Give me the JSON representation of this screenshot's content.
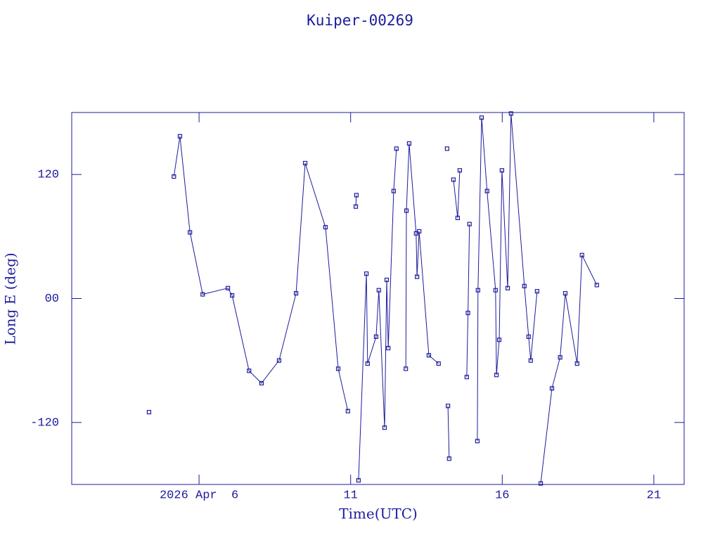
{
  "chart_data": {
    "type": "line",
    "title": "Kuiper-00269",
    "x_label": "Time(UTC)",
    "y_label": "Long E (deg)",
    "color": "#1c1c9c",
    "xlim": [
      1.8,
      22.0
    ],
    "ylim": [
      -180,
      180
    ],
    "xticks": [
      {
        "value": 6,
        "label": "2026 Apr  6"
      },
      11,
      16,
      21
    ],
    "yticks": [
      {
        "value": 120,
        "label": "120"
      },
      {
        "value": 0,
        "label": "00"
      },
      {
        "value": -120,
        "label": "-120"
      }
    ],
    "x": [
      4.35,
      null,
      5.17,
      5.37,
      5.7,
      6.12,
      6.95,
      7.09,
      7.65,
      8.06,
      8.64,
      9.2,
      9.5,
      10.17,
      10.59,
      10.91,
      null,
      11.17,
      11.19,
      null,
      11.26,
      11.52,
      11.56,
      11.84,
      11.93,
      12.12,
      12.19,
      12.24,
      12.42,
      12.51,
      null,
      12.82,
      12.84,
      12.93,
      13.16,
      13.19,
      13.26,
      13.58,
      13.9,
      null,
      14.18,
      null,
      14.21,
      14.25,
      null,
      14.39,
      14.53,
      14.6,
      null,
      14.83,
      14.87,
      14.92,
      null,
      15.18,
      15.2,
      15.32,
      15.5,
      15.78,
      15.81,
      15.9,
      15.99,
      16.18,
      16.29,
      16.73,
      16.87,
      16.94,
      17.15,
      null,
      17.27,
      17.64,
      17.91,
      18.08,
      18.47,
      18.63,
      19.12
    ],
    "values": [
      -110,
      null,
      118,
      157,
      64,
      4,
      10,
      3,
      -70,
      -82,
      -60,
      5,
      131,
      69,
      -68,
      -109,
      null,
      89,
      100,
      null,
      -176,
      24,
      -63,
      -37,
      8,
      -125,
      18,
      -48,
      104,
      145,
      null,
      -68,
      85,
      150,
      63,
      21,
      65,
      -55,
      -63,
      null,
      145,
      null,
      -104,
      -155,
      null,
      115,
      78,
      124,
      null,
      -76,
      -14,
      72,
      null,
      -138,
      8,
      175,
      104,
      8,
      -74,
      -40,
      124,
      10,
      179,
      12,
      -37,
      -60,
      7,
      null,
      -179,
      -87,
      -57,
      5,
      -63,
      42,
      13
    ]
  }
}
